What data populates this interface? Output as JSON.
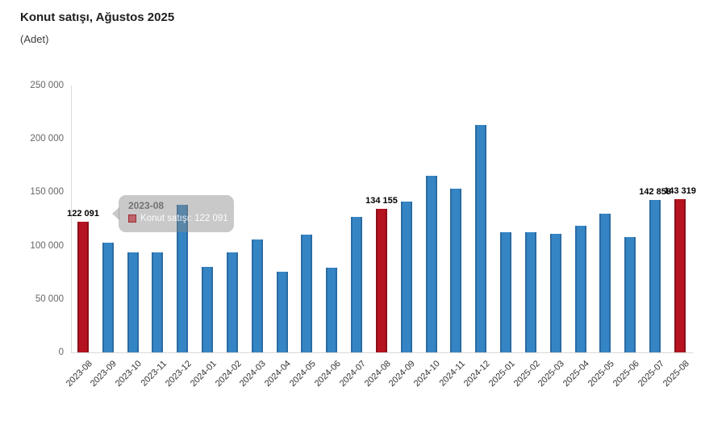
{
  "chart": {
    "title": "Konut satışı, Ağustos 2025",
    "subtitle": "(Adet)"
  },
  "tooltip": {
    "header": "2023-08",
    "series_label": "Konut satışı",
    "value": "122 091",
    "body": "Konut satışı: 122 091"
  },
  "colors": {
    "bar_blue": "#3585c4",
    "bar_blue_edge": "#2a6ba3",
    "bar_red": "#b5131f",
    "bar_red_edge": "#8c0f18",
    "axis_line": "#d9d9d9",
    "ytick_text": "#666666",
    "xtick_text": "#333333",
    "data_label_text": "#000000",
    "tooltip_bg": "rgba(135,135,135,0.45)"
  },
  "chart_data": {
    "type": "bar",
    "title": "Konut satışı, Ağustos 2025",
    "subtitle": "(Adet)",
    "ylabel": "Adet",
    "xlabel": "",
    "categories": [
      "2023-08",
      "2023-09",
      "2023-10",
      "2023-11",
      "2023-12",
      "2024-01",
      "2024-02",
      "2024-03",
      "2024-04",
      "2024-05",
      "2024-06",
      "2024-07",
      "2024-08",
      "2024-09",
      "2024-10",
      "2024-11",
      "2024-12",
      "2025-01",
      "2025-02",
      "2025-03",
      "2025-04",
      "2025-05",
      "2025-06",
      "2025-07",
      "2025-08"
    ],
    "values": [
      122091,
      102656,
      93761,
      93514,
      138577,
      80308,
      93902,
      105476,
      75569,
      110588,
      79313,
      127088,
      134155,
      140919,
      165138,
      153014,
      212637,
      112173,
      112818,
      110795,
      118359,
      130025,
      107723,
      142858,
      143319
    ],
    "highlight_indices": [
      0,
      12,
      24
    ],
    "labeled_points": [
      {
        "index": 0,
        "label": "122 091"
      },
      {
        "index": 12,
        "label": "134 155"
      },
      {
        "index": 23,
        "label": "142 858"
      },
      {
        "index": 24,
        "label": "143 319"
      }
    ],
    "ylim": [
      0,
      250000
    ],
    "yticks": [
      "0",
      "50 000",
      "100 000",
      "150 000",
      "200 000",
      "250 000"
    ],
    "grid": false,
    "legend": false,
    "legend_position": "none"
  }
}
